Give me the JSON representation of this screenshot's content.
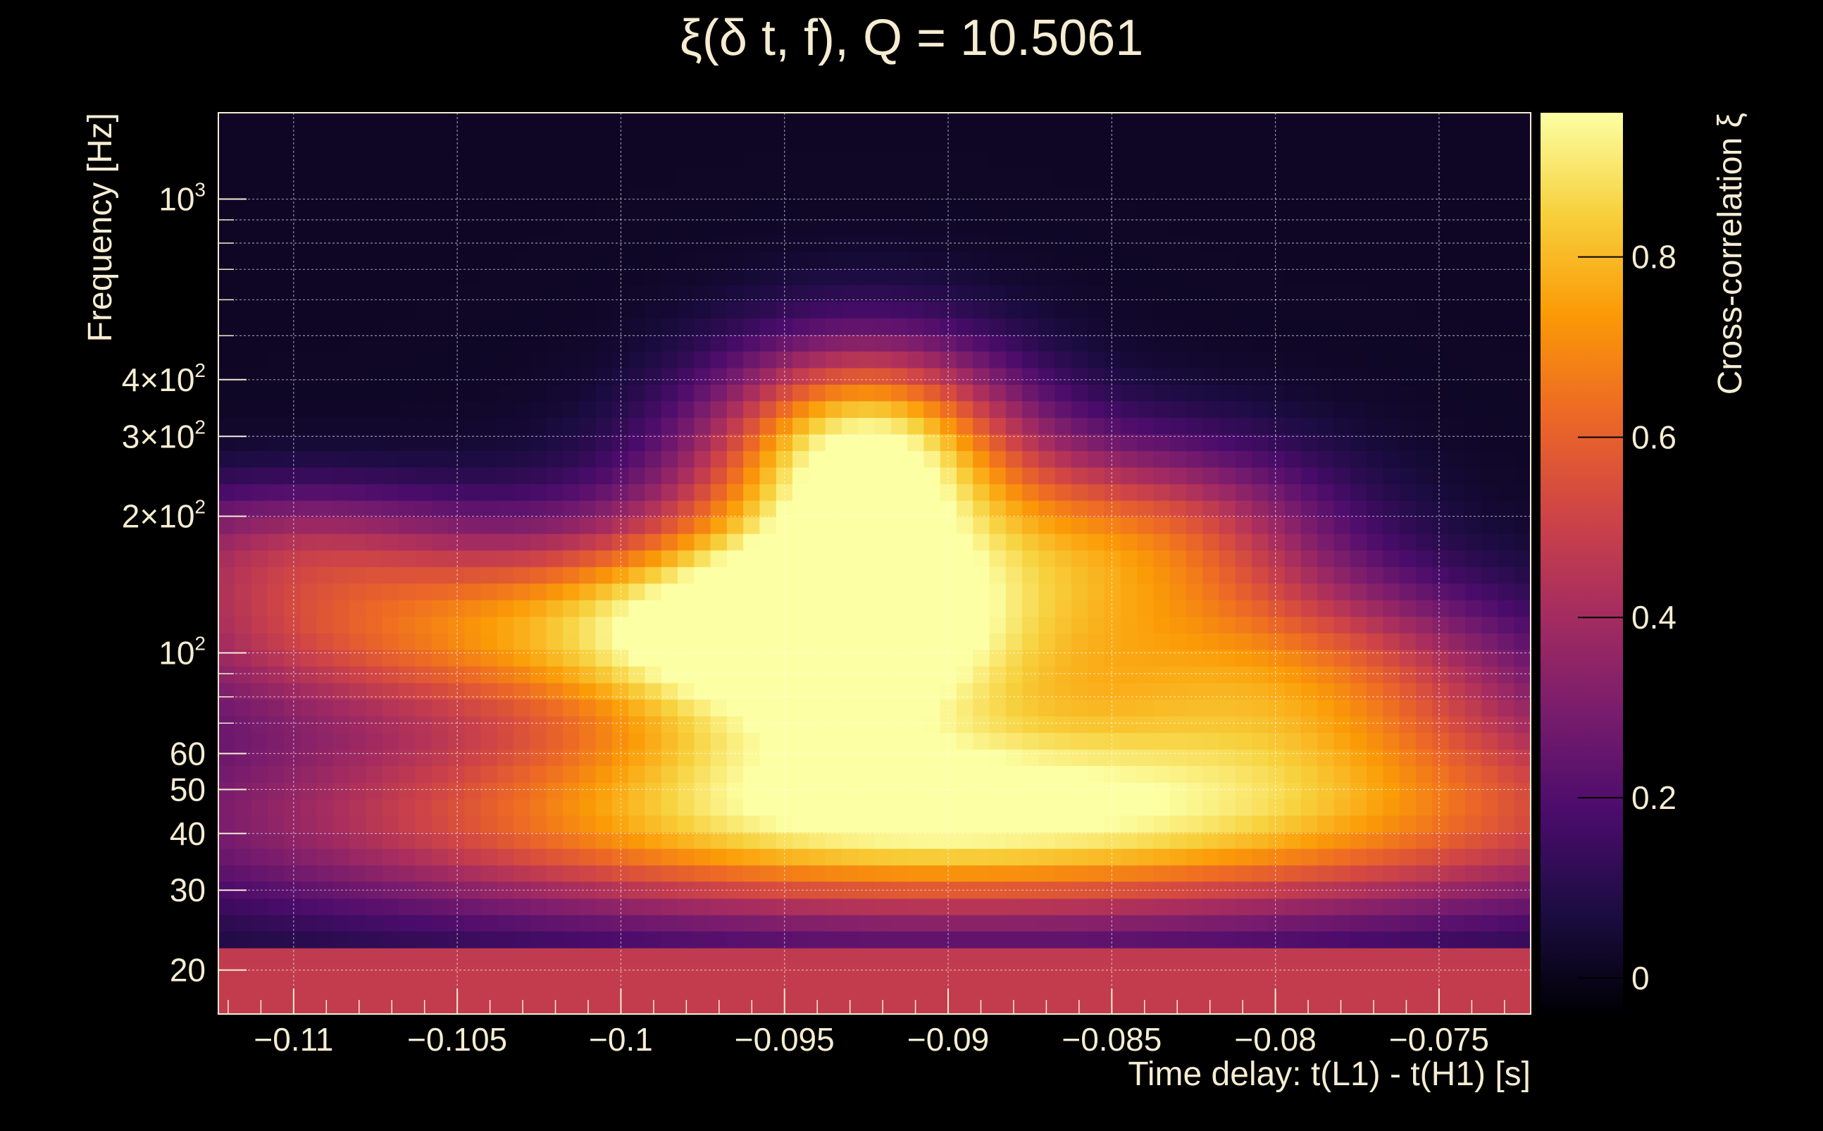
{
  "chart_data": {
    "type": "heatmap",
    "title": "ξ(δ t, f), Q = 10.5061",
    "xlabel": "Time delay: t(L1) - t(H1) [s]",
    "ylabel": "Frequency [Hz]",
    "colorbar_label": "Cross-correlation ξ",
    "xlim": [
      -0.1123,
      -0.0722
    ],
    "ylim": [
      16,
      1550
    ],
    "yscale": "log",
    "x_ticks": [
      {
        "value": -0.11,
        "label": "−0.11"
      },
      {
        "value": -0.105,
        "label": "−0.105"
      },
      {
        "value": -0.1,
        "label": "−0.1"
      },
      {
        "value": -0.095,
        "label": "−0.095"
      },
      {
        "value": -0.09,
        "label": "−0.09"
      },
      {
        "value": -0.085,
        "label": "−0.085"
      },
      {
        "value": -0.08,
        "label": "−0.08"
      },
      {
        "value": -0.075,
        "label": "−0.075"
      }
    ],
    "y_ticks": [
      {
        "value": 20,
        "label": "20"
      },
      {
        "value": 30,
        "label": "30"
      },
      {
        "value": 40,
        "label": "40"
      },
      {
        "value": 50,
        "label": "50"
      },
      {
        "value": 60,
        "label": "60"
      },
      {
        "value": 100,
        "label": "10",
        "sup": "2"
      },
      {
        "value": 200,
        "label": "2×10",
        "sup": "2"
      },
      {
        "value": 300,
        "label": "3×10",
        "sup": "2"
      },
      {
        "value": 400,
        "label": "4×10",
        "sup": "2"
      },
      {
        "value": 1000,
        "label": "10",
        "sup": "3"
      }
    ],
    "colorbar": {
      "range": [
        -0.04,
        0.96
      ],
      "ticks": [
        {
          "value": 0,
          "label": "0"
        },
        {
          "value": 0.2,
          "label": "0.2"
        },
        {
          "value": 0.4,
          "label": "0.4"
        },
        {
          "value": 0.6,
          "label": "0.6"
        },
        {
          "value": 0.8,
          "label": "0.8"
        }
      ],
      "colormap": "inferno",
      "colormap_stops": [
        "#000004",
        "#1b0c41",
        "#4a0c6b",
        "#781c6d",
        "#a52c60",
        "#cf4446",
        "#ed6925",
        "#fb9b06",
        "#f7d13d",
        "#fcffa4"
      ]
    },
    "grid": true,
    "heatmap_grid": {
      "x_start": -0.1123,
      "x_end": -0.0722,
      "n_cols": 80,
      "f_bins": [
        16,
        17.4,
        18.9,
        20.6,
        22.4,
        24.4,
        26.5,
        28.8,
        31.4,
        34.1,
        37.1,
        40.3,
        43.9,
        47.7,
        51.9,
        56.5,
        61.4,
        66.8,
        72.7,
        79.1,
        86.0,
        93.6,
        101.8,
        110.7,
        120.4,
        131.0,
        142.5,
        155.0,
        168.6,
        183.4,
        199.5,
        217.0,
        236.1,
        256.8,
        279.3,
        303.9,
        330.5,
        359.5,
        391.1,
        425.4,
        462.8,
        503.4,
        547.6,
        595.7,
        648.0,
        704.9,
        766.8,
        834.1,
        907.3,
        987.0,
        1073.6,
        1167.9,
        1270.4,
        1381.9,
        1503.2,
        1550
      ]
    }
  }
}
